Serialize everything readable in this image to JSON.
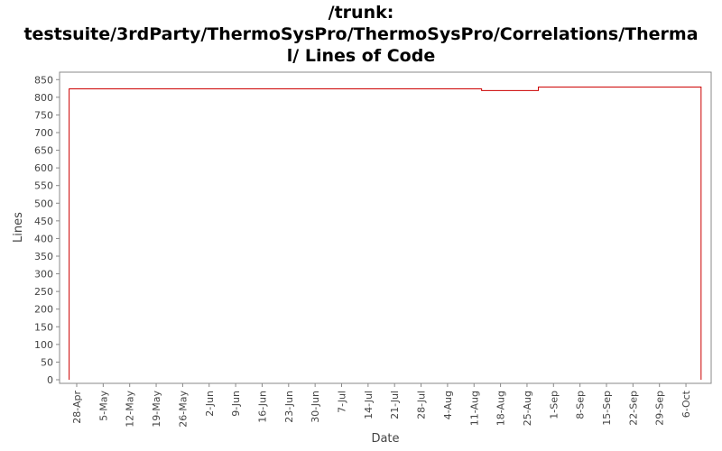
{
  "chart_data": {
    "type": "line",
    "title_lines": [
      "/trunk:",
      "testsuite/3rdParty/ThermoSysPro/ThermoSysPro/Correlations/Therma",
      "l/ Lines of Code"
    ],
    "xlabel": "Date",
    "ylabel": "Lines",
    "ylim": [
      0,
      870
    ],
    "y_ticks": [
      0,
      50,
      100,
      150,
      200,
      250,
      300,
      350,
      400,
      450,
      500,
      550,
      600,
      650,
      700,
      750,
      800,
      850
    ],
    "x_tick_labels": [
      "28-Apr",
      "5-May",
      "12-May",
      "19-May",
      "26-May",
      "2-Jun",
      "9-Jun",
      "16-Jun",
      "23-Jun",
      "30-Jun",
      "7-Jul",
      "14-Jul",
      "21-Jul",
      "28-Jul",
      "4-Aug",
      "11-Aug",
      "18-Aug",
      "25-Aug",
      "1-Sep",
      "8-Sep",
      "15-Sep",
      "22-Sep",
      "29-Sep",
      "6-Oct"
    ],
    "grid": false,
    "legend": "none",
    "colors": {
      "line": "#cc0000",
      "frame": "#888888",
      "text": "#444444"
    },
    "series": [
      {
        "step": "post",
        "x": [
          "26-Apr",
          "26-Apr",
          "13-Aug",
          "28-Aug",
          "10-Oct",
          "10-Oct"
        ],
        "y": [
          0,
          824,
          819,
          829,
          829,
          0
        ]
      }
    ]
  }
}
